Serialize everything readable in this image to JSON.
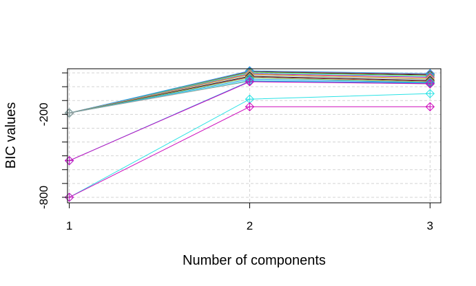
{
  "chart_data": {
    "type": "line",
    "xlabel": "Number of components",
    "ylabel": "BIC values",
    "x": [
      1,
      2,
      3
    ],
    "xticks": [
      1,
      2,
      3
    ],
    "xtick_labels": [
      "1",
      "2",
      "3"
    ],
    "xlim": [
      0.99,
      3.06
    ],
    "yticks": [
      -800,
      -200
    ],
    "ytick_labels": [
      "-800",
      "-200"
    ],
    "ylim": [
      -840,
      130
    ],
    "ygrid": [
      -800,
      -700,
      -600,
      -500,
      -400,
      -300,
      -200,
      -100,
      0,
      100
    ],
    "grid": true,
    "marker": "diamond-plus",
    "series": [
      {
        "values": [
          -190,
          108,
          85
        ],
        "color": "#000000"
      },
      {
        "values": [
          -190,
          112,
          90
        ],
        "color": "#df536b"
      },
      {
        "values": [
          -190,
          105,
          80
        ],
        "color": "#61d04f"
      },
      {
        "values": [
          -190,
          115,
          95
        ],
        "color": "#2297e6"
      },
      {
        "values": [
          -190,
          98,
          72
        ],
        "color": "#28e2e5"
      },
      {
        "values": [
          -190,
          94,
          68
        ],
        "color": "#cd0bbc"
      },
      {
        "values": [
          -190,
          90,
          60
        ],
        "color": "#f5c710"
      },
      {
        "values": [
          -190,
          85,
          55
        ],
        "color": "#9e9e9e"
      },
      {
        "values": [
          -190,
          75,
          45
        ],
        "color": "#000000"
      },
      {
        "values": [
          -190,
          70,
          40
        ],
        "color": "#df536b"
      },
      {
        "values": [
          -190,
          65,
          35
        ],
        "color": "#61d04f"
      },
      {
        "values": [
          -190,
          55,
          30
        ],
        "color": "#2297e6"
      },
      {
        "values": [
          -190,
          45,
          25
        ],
        "color": "#28e2e5"
      },
      {
        "values": [
          -190,
          40,
          20
        ],
        "color": "#9e9e9e"
      },
      {
        "values": [
          -535,
          40,
          28
        ],
        "color": "#2297e6"
      },
      {
        "values": [
          -535,
          36,
          22
        ],
        "color": "#cd0bbc"
      },
      {
        "values": [
          -800,
          -90,
          -50
        ],
        "color": "#28e2e5"
      },
      {
        "values": [
          -800,
          -145,
          -145
        ],
        "color": "#cd0bbc"
      }
    ]
  }
}
